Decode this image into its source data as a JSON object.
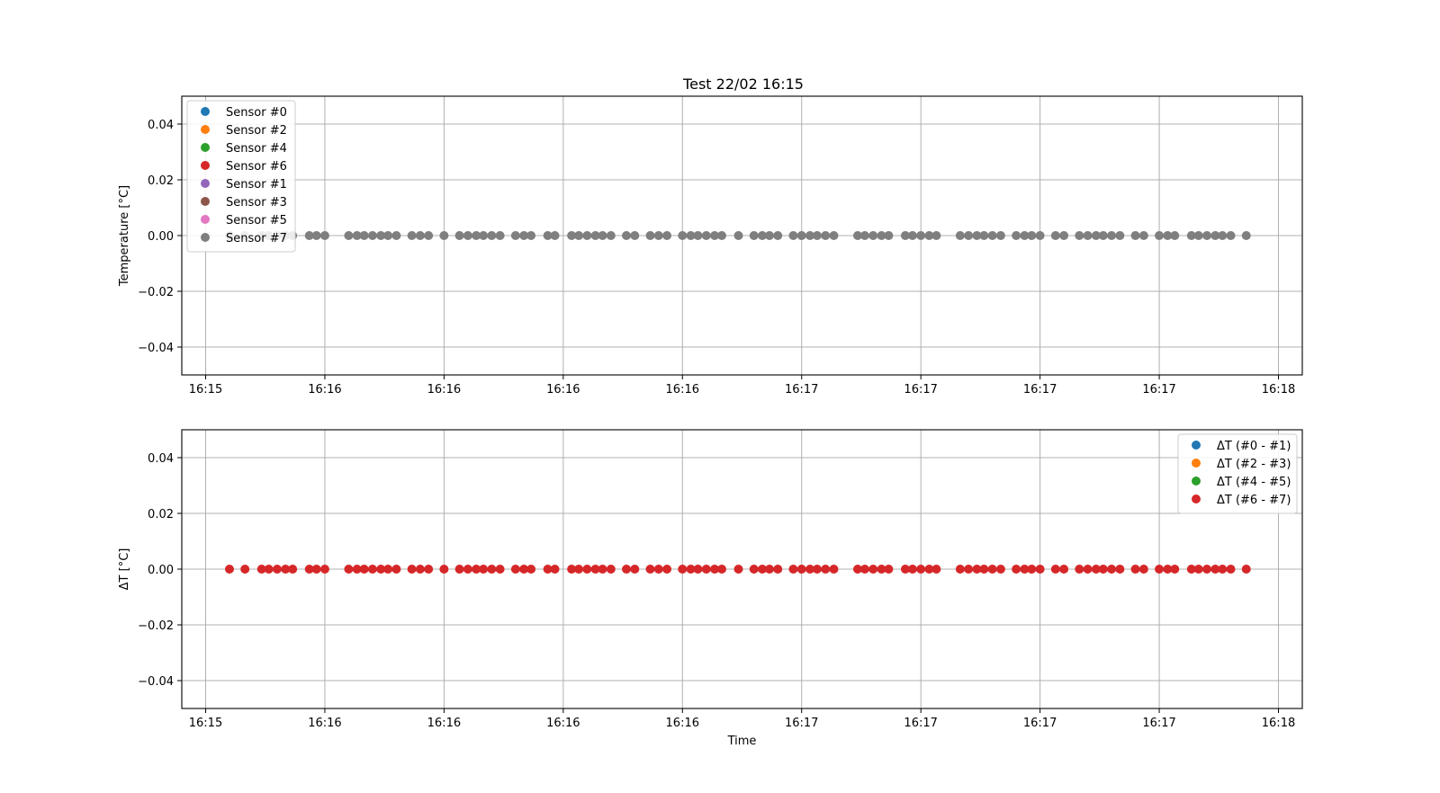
{
  "figure_title": "Test 22/02 16:15",
  "chart_data": [
    {
      "type": "scatter",
      "title": "Test 22/02 16:15",
      "xlabel": "",
      "ylabel": "Temperature [°C]",
      "ylim": [
        -0.05,
        0.05
      ],
      "yticks": [
        -0.04,
        -0.02,
        0.0,
        0.02,
        0.04
      ],
      "ytick_labels": [
        "−0.04",
        "−0.02",
        "0.00",
        "0.02",
        "0.04"
      ],
      "xlim": [
        -0.2,
        9.2
      ],
      "xticks": [
        0,
        1,
        2,
        3,
        4,
        5,
        6,
        7,
        8,
        9
      ],
      "xtick_labels": [
        "16:15",
        "16:16",
        "16:16",
        "16:16",
        "16:16",
        "16:17",
        "16:17",
        "16:17",
        "16:17",
        "16:18"
      ],
      "grid": true,
      "legend_position": "top-left",
      "point_color": "#7f7f7f",
      "x": [
        0.2,
        0.33,
        0.47,
        0.53,
        0.6,
        0.67,
        0.73,
        0.87,
        0.93,
        1.0,
        1.2,
        1.27,
        1.33,
        1.4,
        1.47,
        1.53,
        1.6,
        1.73,
        1.8,
        1.87,
        2.0,
        2.13,
        2.2,
        2.27,
        2.33,
        2.4,
        2.47,
        2.6,
        2.67,
        2.73,
        2.87,
        2.93,
        3.07,
        3.13,
        3.2,
        3.27,
        3.33,
        3.4,
        3.53,
        3.6,
        3.73,
        3.8,
        3.87,
        4.0,
        4.07,
        4.13,
        4.2,
        4.27,
        4.33,
        4.47,
        4.6,
        4.67,
        4.73,
        4.8,
        4.93,
        5.0,
        5.07,
        5.13,
        5.2,
        5.27,
        5.47,
        5.53,
        5.6,
        5.67,
        5.73,
        5.87,
        5.93,
        6.0,
        6.07,
        6.13,
        6.33,
        6.4,
        6.47,
        6.53,
        6.6,
        6.67,
        6.8,
        6.87,
        6.93,
        7.0,
        7.13,
        7.2,
        7.33,
        7.4,
        7.47,
        7.53,
        7.6,
        7.67,
        7.8,
        7.87,
        8.0,
        8.07,
        8.13,
        8.27,
        8.33,
        8.4,
        8.47,
        8.53,
        8.6,
        8.73
      ],
      "y": 0.0,
      "series": [
        {
          "name": "Sensor #0",
          "color": "#1f77b4"
        },
        {
          "name": "Sensor #2",
          "color": "#ff7f0e"
        },
        {
          "name": "Sensor #4",
          "color": "#2ca02c"
        },
        {
          "name": "Sensor #6",
          "color": "#d62728"
        },
        {
          "name": "Sensor #1",
          "color": "#9467bd"
        },
        {
          "name": "Sensor #3",
          "color": "#8c564b"
        },
        {
          "name": "Sensor #5",
          "color": "#e377c2"
        },
        {
          "name": "Sensor #7",
          "color": "#7f7f7f"
        }
      ]
    },
    {
      "type": "scatter",
      "title": "",
      "xlabel": "Time",
      "ylabel": "ΔT [°C]",
      "ylim": [
        -0.05,
        0.05
      ],
      "yticks": [
        -0.04,
        -0.02,
        0.0,
        0.02,
        0.04
      ],
      "ytick_labels": [
        "−0.04",
        "−0.02",
        "0.00",
        "0.02",
        "0.04"
      ],
      "xlim": [
        -0.2,
        9.2
      ],
      "xticks": [
        0,
        1,
        2,
        3,
        4,
        5,
        6,
        7,
        8,
        9
      ],
      "xtick_labels": [
        "16:15",
        "16:16",
        "16:16",
        "16:16",
        "16:16",
        "16:17",
        "16:17",
        "16:17",
        "16:17",
        "16:18"
      ],
      "grid": true,
      "legend_position": "top-right",
      "point_color": "#d62728",
      "x": [
        0.2,
        0.33,
        0.47,
        0.53,
        0.6,
        0.67,
        0.73,
        0.87,
        0.93,
        1.0,
        1.2,
        1.27,
        1.33,
        1.4,
        1.47,
        1.53,
        1.6,
        1.73,
        1.8,
        1.87,
        2.0,
        2.13,
        2.2,
        2.27,
        2.33,
        2.4,
        2.47,
        2.6,
        2.67,
        2.73,
        2.87,
        2.93,
        3.07,
        3.13,
        3.2,
        3.27,
        3.33,
        3.4,
        3.53,
        3.6,
        3.73,
        3.8,
        3.87,
        4.0,
        4.07,
        4.13,
        4.2,
        4.27,
        4.33,
        4.47,
        4.6,
        4.67,
        4.73,
        4.8,
        4.93,
        5.0,
        5.07,
        5.13,
        5.2,
        5.27,
        5.47,
        5.53,
        5.6,
        5.67,
        5.73,
        5.87,
        5.93,
        6.0,
        6.07,
        6.13,
        6.33,
        6.4,
        6.47,
        6.53,
        6.6,
        6.67,
        6.8,
        6.87,
        6.93,
        7.0,
        7.13,
        7.2,
        7.33,
        7.4,
        7.47,
        7.53,
        7.6,
        7.67,
        7.8,
        7.87,
        8.0,
        8.07,
        8.13,
        8.27,
        8.33,
        8.4,
        8.47,
        8.53,
        8.6,
        8.73
      ],
      "y": 0.0,
      "series": [
        {
          "name": "ΔT (#0 - #1)",
          "color": "#1f77b4"
        },
        {
          "name": "ΔT (#2 - #3)",
          "color": "#ff7f0e"
        },
        {
          "name": "ΔT (#4 - #5)",
          "color": "#2ca02c"
        },
        {
          "name": "ΔT (#6 - #7)",
          "color": "#d62728"
        }
      ]
    }
  ]
}
